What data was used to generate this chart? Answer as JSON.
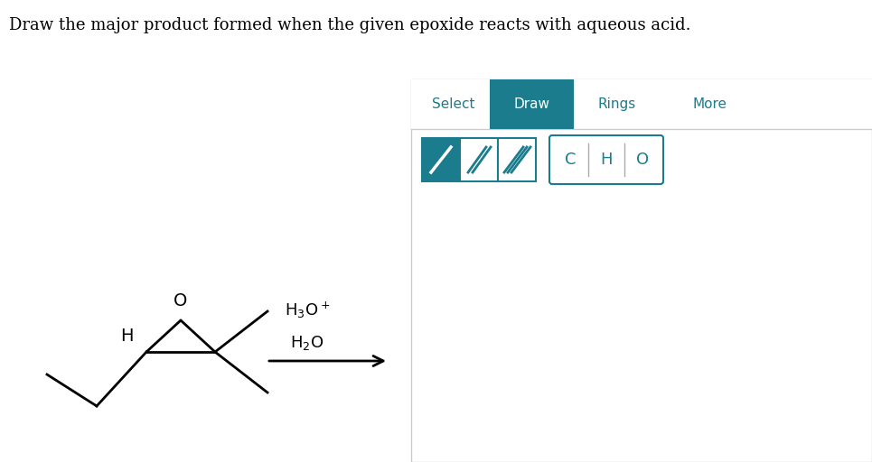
{
  "title": "Draw the major product formed when the given epoxide reacts with aqueous acid.",
  "title_fontsize": 13,
  "bg_color": "#ffffff",
  "teal_color": "#1a7c8c",
  "toolbar_tabs": [
    "Select",
    "Draw",
    "Rings",
    "More"
  ],
  "active_tab": "Draw"
}
